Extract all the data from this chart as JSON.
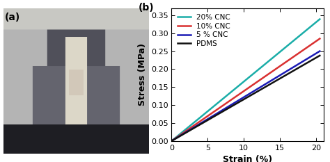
{
  "xlabel": "Strain (%)",
  "ylabel": "Stress (MPa)",
  "xlim": [
    0,
    21
  ],
  "ylim": [
    0,
    0.37
  ],
  "xticks": [
    0,
    5,
    10,
    15,
    20
  ],
  "yticks": [
    0.0,
    0.05,
    0.1,
    0.15,
    0.2,
    0.25,
    0.3,
    0.35
  ],
  "lines": [
    {
      "label": "20% CNC",
      "slope": 0.01655,
      "color": "#1aada8",
      "lw": 1.8
    },
    {
      "label": "10% CNC",
      "slope": 0.0139,
      "color": "#d93030",
      "lw": 1.8
    },
    {
      "label": "5 % CNC",
      "slope": 0.0122,
      "color": "#1a1ab5",
      "lw": 1.8
    },
    {
      "label": "PDMS",
      "slope": 0.0116,
      "color": "#111111",
      "lw": 1.8
    }
  ],
  "background_color": "#ffffff",
  "photo_bg": "#aaaaaa",
  "panel_a_label": "(a)",
  "panel_b_label": "(b)",
  "panel_label_fontsize": 10,
  "axis_label_fontsize": 9,
  "tick_fontsize": 8,
  "legend_fontsize": 7.5
}
